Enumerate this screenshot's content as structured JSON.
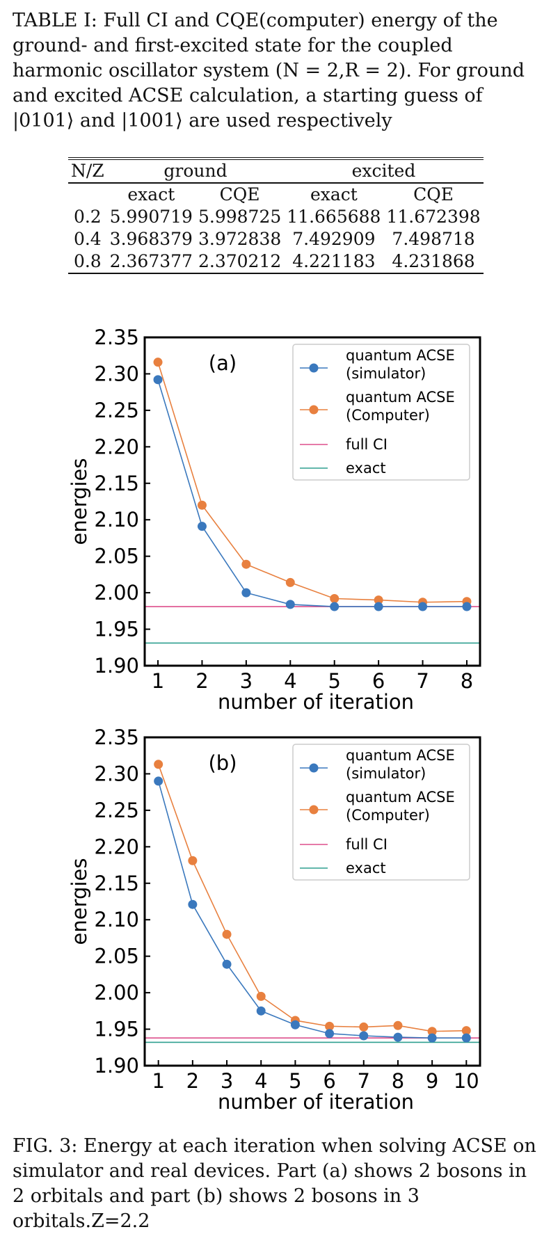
{
  "table_caption": "TABLE I: Full CI and CQE(computer) energy of the ground- and first-excited state for the coupled harmonic oscillator system (N = 2,R = 2). For ground and excited ACSE calculation, a starting guess of |0101⟩ and |1001⟩ are used respectively",
  "table": {
    "col_header": "N/Z",
    "group_ground": "ground",
    "group_excited": "excited",
    "sub": [
      "exact",
      "CQE",
      "exact",
      "CQE"
    ],
    "rows": [
      [
        "0.2",
        "5.990719",
        "5.998725",
        "11.665688",
        "11.672398"
      ],
      [
        "0.4",
        "3.968379",
        "3.972838",
        "7.492909",
        "7.498718"
      ],
      [
        "0.8",
        "2.367377",
        "2.370212",
        "4.221183",
        "4.231868"
      ]
    ]
  },
  "figure_caption": "FIG. 3: Energy at each iteration when solving ACSE on simulator and real devices. Part (a) shows 2 bosons in 2 orbitals and part (b) shows 2 bosons in 3 orbitals.Z=2.2",
  "colors": {
    "simulator": "#3a78bd",
    "computer": "#e8803f",
    "fullci": "#dd4f8c",
    "exact": "#2e9f8f"
  },
  "chart_data": [
    {
      "type": "line",
      "panel_label": "(a)",
      "xlabel": "number of iteration",
      "ylabel": "energies",
      "x": [
        1,
        2,
        3,
        4,
        5,
        6,
        7,
        8
      ],
      "xlim": [
        0.7,
        8.3
      ],
      "ylim": [
        1.9,
        2.35
      ],
      "yticks": [
        "1.90",
        "1.95",
        "2.00",
        "2.05",
        "2.10",
        "2.15",
        "2.20",
        "2.25",
        "2.30",
        "2.35"
      ],
      "series": [
        {
          "name": "quantum ACSE (simulator)",
          "legend_lines": [
            "quantum ACSE",
            "(simulator)"
          ],
          "values": [
            2.292,
            2.091,
            2.0,
            1.984,
            1.981,
            1.981,
            1.981,
            1.981
          ]
        },
        {
          "name": "quantum ACSE (Computer)",
          "legend_lines": [
            "quantum ACSE",
            "(Computer)"
          ],
          "values": [
            2.316,
            2.12,
            2.039,
            2.014,
            1.992,
            1.99,
            1.987,
            1.988
          ]
        }
      ],
      "hlines": [
        {
          "name": "full CI",
          "value": 1.981
        },
        {
          "name": "exact",
          "value": 1.931
        }
      ],
      "legend_position": "top-right",
      "grid": false
    },
    {
      "type": "line",
      "panel_label": "(b)",
      "xlabel": "number of iteration",
      "ylabel": "energies",
      "x": [
        1,
        2,
        3,
        4,
        5,
        6,
        7,
        8,
        9,
        10
      ],
      "xlim": [
        0.6,
        10.4
      ],
      "ylim": [
        1.9,
        2.35
      ],
      "yticks": [
        "1.90",
        "1.95",
        "2.00",
        "2.05",
        "2.10",
        "2.15",
        "2.20",
        "2.25",
        "2.30",
        "2.35"
      ],
      "series": [
        {
          "name": "quantum ACSE (simulator)",
          "legend_lines": [
            "quantum ACSE",
            "(simulator)"
          ],
          "values": [
            2.29,
            2.121,
            2.039,
            1.975,
            1.956,
            1.944,
            1.941,
            1.939,
            1.938,
            1.938
          ]
        },
        {
          "name": "quantum ACSE (Computer)",
          "legend_lines": [
            "quantum ACSE",
            "(Computer)"
          ],
          "values": [
            2.313,
            2.181,
            2.08,
            1.995,
            1.962,
            1.954,
            1.953,
            1.955,
            1.947,
            1.948
          ]
        }
      ],
      "hlines": [
        {
          "name": "full CI",
          "value": 1.938
        },
        {
          "name": "exact",
          "value": 1.932
        }
      ],
      "legend_position": "top-right",
      "grid": false
    }
  ]
}
